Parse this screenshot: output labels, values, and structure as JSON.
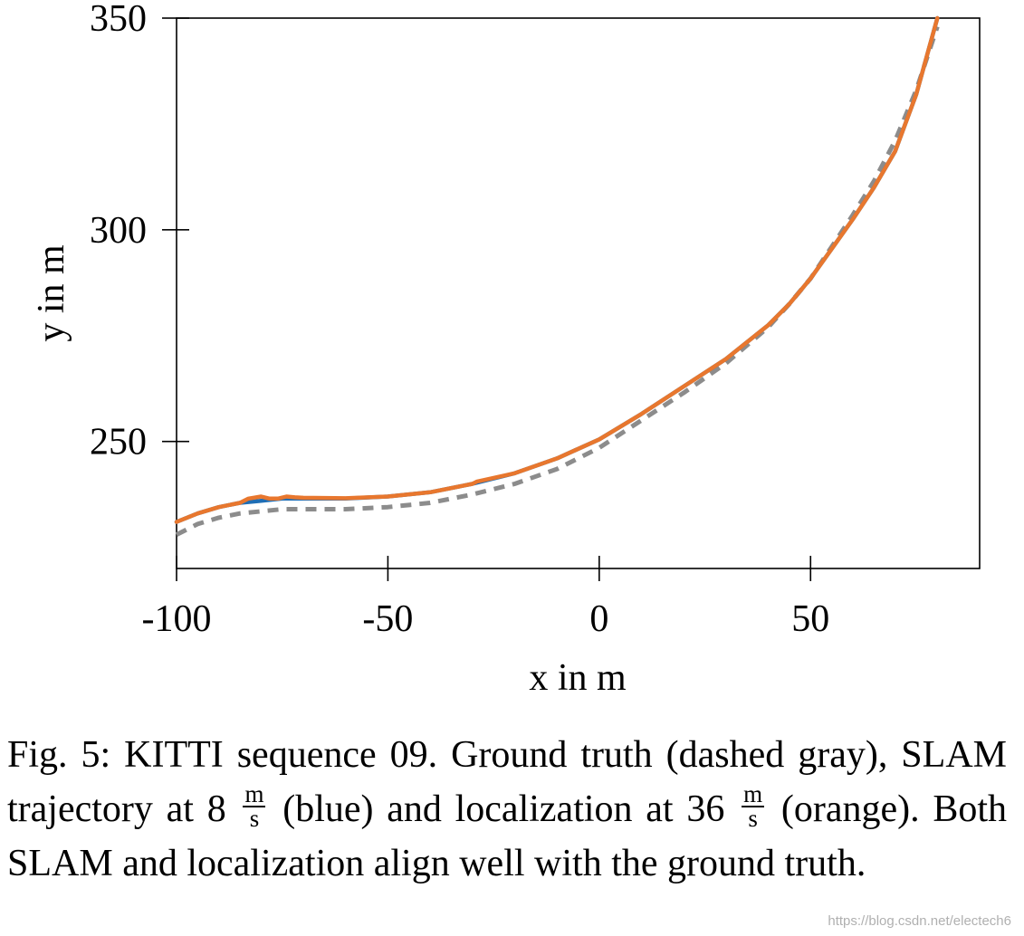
{
  "chart_data": {
    "type": "line",
    "title": "",
    "xlabel": "x in m",
    "ylabel": "y in m",
    "xlim": [
      -100,
      90
    ],
    "ylim": [
      220,
      350
    ],
    "xticks": [
      -100,
      -50,
      0,
      50
    ],
    "xtick_labels": [
      "-100",
      "-50",
      "0",
      "50"
    ],
    "yticks": [
      250,
      300,
      350
    ],
    "ytick_labels": [
      "250",
      "300",
      "350"
    ],
    "grid": false,
    "series": [
      {
        "name": "Ground truth",
        "color": "#8c8c8c",
        "style": "dashed",
        "x": [
          -100,
          -95,
          -90,
          -85,
          -80,
          -75,
          -70,
          -60,
          -50,
          -40,
          -30,
          -20,
          -10,
          0,
          10,
          20,
          30,
          40,
          45,
          50,
          55,
          60,
          65,
          70,
          75,
          80
        ],
        "y": [
          228,
          230.5,
          232,
          233,
          233.5,
          234,
          234,
          234,
          234.5,
          235.5,
          237.5,
          240,
          243.5,
          248.5,
          255,
          261.5,
          268.5,
          277,
          282.5,
          288.5,
          296,
          303.5,
          311.5,
          321,
          333,
          348
        ]
      },
      {
        "name": "SLAM trajectory at 8 m/s",
        "color": "#1f6eb5",
        "style": "solid",
        "x": [
          -100,
          -95,
          -90,
          -85,
          -80,
          -75,
          -70,
          -60,
          -50,
          -40,
          -30,
          -20,
          -10,
          0,
          10,
          20,
          30,
          40,
          45,
          50,
          55,
          60,
          65,
          70,
          75,
          80
        ],
        "y": [
          231,
          233,
          234.5,
          235.5,
          236,
          236.5,
          236.5,
          236.5,
          237,
          238,
          240,
          242.5,
          246,
          250.5,
          256.5,
          263,
          269.5,
          277.5,
          282.5,
          288.5,
          295.5,
          302.5,
          310,
          318.5,
          332,
          350
        ]
      },
      {
        "name": "Localization at 36 m/s",
        "color": "#e8772e",
        "style": "solid",
        "x": [
          -100,
          -95,
          -90,
          -85,
          -83,
          -80,
          -78,
          -76,
          -74,
          -72,
          -70,
          -60,
          -50,
          -40,
          -30,
          -29,
          -20,
          -10,
          0,
          10,
          20,
          30,
          40,
          45,
          50,
          55,
          60,
          65,
          70,
          75,
          80
        ],
        "y": [
          231,
          233,
          234.5,
          235.5,
          236.5,
          237,
          236.5,
          236.5,
          237,
          236.8,
          236.7,
          236.6,
          237,
          238,
          240,
          240.5,
          242.5,
          246,
          250.5,
          256.5,
          263,
          269.5,
          277.5,
          282.5,
          288.5,
          295.5,
          302.5,
          310,
          318.5,
          332,
          350
        ]
      }
    ]
  },
  "caption": {
    "part1": "Fig. 5: KITTI sequence 09. Ground truth (dashed gray), SLAM trajectory at 8",
    "unit_num": "m",
    "unit_den": "s",
    "part2": "(blue) and localization at 36",
    "part3": "(orange). Both SLAM and localization align well with the ground truth."
  },
  "watermark": "https://blog.csdn.net/electech6"
}
